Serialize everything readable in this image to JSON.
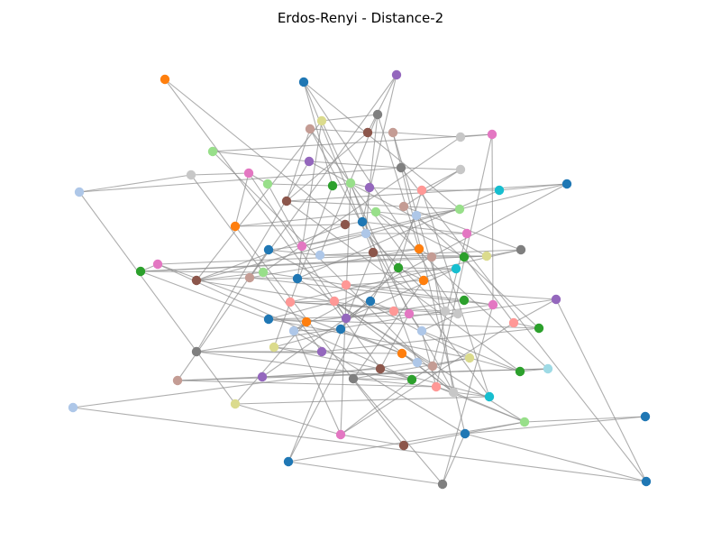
{
  "figure": {
    "title": "Erdos-Renyi - Distance-2"
  },
  "style": {
    "background": "#ffffff",
    "edge_color": "#8c8c8c",
    "title_color": "#000000"
  },
  "nodes": [
    {
      "id": "n0",
      "color": "#ff7f0e"
    },
    {
      "id": "n1",
      "color": "#1f77b4"
    },
    {
      "id": "n2",
      "color": "#9467bd"
    },
    {
      "id": "n3",
      "color": "#dbdb8d"
    },
    {
      "id": "n4",
      "color": "#7f7f7f"
    },
    {
      "id": "n5",
      "color": "#c49c94"
    },
    {
      "id": "n6",
      "color": "#8c564b"
    },
    {
      "id": "n7",
      "color": "#c49c94"
    },
    {
      "id": "n8",
      "color": "#c7c7c7"
    },
    {
      "id": "n9",
      "color": "#e377c2"
    },
    {
      "id": "n10",
      "color": "#98df8a"
    },
    {
      "id": "n11",
      "color": "#9467bd"
    },
    {
      "id": "n12",
      "color": "#7f7f7f"
    },
    {
      "id": "n13",
      "color": "#c7c7c7"
    },
    {
      "id": "n14",
      "color": "#aec7e8"
    },
    {
      "id": "n15",
      "color": "#c7c7c7"
    },
    {
      "id": "n16",
      "color": "#e377c2"
    },
    {
      "id": "n17",
      "color": "#98df8a"
    },
    {
      "id": "n18",
      "color": "#2ca02c"
    },
    {
      "id": "n19",
      "color": "#98df8a"
    },
    {
      "id": "n20",
      "color": "#9467bd"
    },
    {
      "id": "n21",
      "color": "#ff9896"
    },
    {
      "id": "n22",
      "color": "#17becf"
    },
    {
      "id": "n23",
      "color": "#1f77b4"
    },
    {
      "id": "n24",
      "color": "#8c564b"
    },
    {
      "id": "n25",
      "color": "#c49c94"
    },
    {
      "id": "n26",
      "color": "#98df8a"
    },
    {
      "id": "n27",
      "color": "#aec7e8"
    },
    {
      "id": "n28",
      "color": "#98df8a"
    },
    {
      "id": "n29",
      "color": "#ff7f0e"
    },
    {
      "id": "n30",
      "color": "#8c564b"
    },
    {
      "id": "n31",
      "color": "#1f77b4"
    },
    {
      "id": "n32",
      "color": "#e377c2"
    },
    {
      "id": "n33",
      "color": "#aec7e8"
    },
    {
      "id": "n34",
      "color": "#e377c2"
    },
    {
      "id": "n35",
      "color": "#1f77b4"
    },
    {
      "id": "n36",
      "color": "#aec7e8"
    },
    {
      "id": "n37",
      "color": "#8c564b"
    },
    {
      "id": "n38",
      "color": "#ff7f0e"
    },
    {
      "id": "n39",
      "color": "#c49c94"
    },
    {
      "id": "n40",
      "color": "#2ca02c"
    },
    {
      "id": "n41",
      "color": "#dbdb8d"
    },
    {
      "id": "n42",
      "color": "#7f7f7f"
    },
    {
      "id": "n43",
      "color": "#e377c2"
    },
    {
      "id": "n44",
      "color": "#2ca02c"
    },
    {
      "id": "n45",
      "color": "#98df8a"
    },
    {
      "id": "n46",
      "color": "#8c564b"
    },
    {
      "id": "n47",
      "color": "#c49c94"
    },
    {
      "id": "n48",
      "color": "#1f77b4"
    },
    {
      "id": "n49",
      "color": "#17becf"
    },
    {
      "id": "n50",
      "color": "#2ca02c"
    },
    {
      "id": "n51",
      "color": "#ff7f0e"
    },
    {
      "id": "n52",
      "color": "#ff9896"
    },
    {
      "id": "n53",
      "color": "#2ca02c"
    },
    {
      "id": "n54",
      "color": "#e377c2"
    },
    {
      "id": "n55",
      "color": "#c7c7c7"
    },
    {
      "id": "n56",
      "color": "#ff9896"
    },
    {
      "id": "n57",
      "color": "#ff9896"
    },
    {
      "id": "n58",
      "color": "#9467bd"
    },
    {
      "id": "n59",
      "color": "#1f77b4"
    },
    {
      "id": "n60",
      "color": "#ff9896"
    },
    {
      "id": "n61",
      "color": "#e377c2"
    },
    {
      "id": "n62",
      "color": "#aec7e8"
    },
    {
      "id": "n63",
      "color": "#c7c7c7"
    },
    {
      "id": "n64",
      "color": "#9467bd"
    },
    {
      "id": "n65",
      "color": "#ff9896"
    },
    {
      "id": "n66",
      "color": "#2ca02c"
    },
    {
      "id": "n67",
      "color": "#1f77b4"
    },
    {
      "id": "n68",
      "color": "#ff7f0e"
    },
    {
      "id": "n69",
      "color": "#aec7e8"
    },
    {
      "id": "n70",
      "color": "#1f77b4"
    },
    {
      "id": "n71",
      "color": "#dbdb8d"
    },
    {
      "id": "n72",
      "color": "#9467bd"
    },
    {
      "id": "n73",
      "color": "#7f7f7f"
    },
    {
      "id": "n74",
      "color": "#ff7f0e"
    },
    {
      "id": "n75",
      "color": "#aec7e8"
    },
    {
      "id": "n76",
      "color": "#c49c94"
    },
    {
      "id": "n77",
      "color": "#dbdb8d"
    },
    {
      "id": "n78",
      "color": "#2ca02c"
    },
    {
      "id": "n79",
      "color": "#9edae5"
    },
    {
      "id": "n80",
      "color": "#c49c94"
    },
    {
      "id": "n81",
      "color": "#9467bd"
    },
    {
      "id": "n82",
      "color": "#8c564b"
    },
    {
      "id": "n83",
      "color": "#2ca02c"
    },
    {
      "id": "n84",
      "color": "#7f7f7f"
    },
    {
      "id": "n85",
      "color": "#ff9896"
    },
    {
      "id": "n86",
      "color": "#c7c7c7"
    },
    {
      "id": "n87",
      "color": "#17becf"
    },
    {
      "id": "n88",
      "color": "#dbdb8d"
    },
    {
      "id": "n89",
      "color": "#e377c2"
    },
    {
      "id": "n90",
      "color": "#8c564b"
    },
    {
      "id": "n91",
      "color": "#98df8a"
    },
    {
      "id": "n92",
      "color": "#1f77b4"
    },
    {
      "id": "n93",
      "color": "#7f7f7f"
    },
    {
      "id": "n94",
      "color": "#1f77b4"
    },
    {
      "id": "n95",
      "color": "#1f77b4"
    },
    {
      "id": "n96",
      "color": "#1f77b4"
    },
    {
      "id": "n97",
      "color": "#aec7e8"
    }
  ],
  "edges": [
    [
      "n0",
      "n30"
    ],
    [
      "n1",
      "n26"
    ],
    [
      "n1",
      "n18"
    ],
    [
      "n1",
      "n37"
    ],
    [
      "n2",
      "n31"
    ],
    [
      "n2",
      "n6"
    ],
    [
      "n3",
      "n4"
    ],
    [
      "n3",
      "n48"
    ],
    [
      "n3",
      "n46"
    ],
    [
      "n4",
      "n36"
    ],
    [
      "n4",
      "n20"
    ],
    [
      "n4",
      "n38"
    ],
    [
      "n5",
      "n6"
    ],
    [
      "n5",
      "n51"
    ],
    [
      "n5",
      "n24"
    ],
    [
      "n6",
      "n7"
    ],
    [
      "n6",
      "n24"
    ],
    [
      "n7",
      "n8"
    ],
    [
      "n7",
      "n94"
    ],
    [
      "n8",
      "n9"
    ],
    [
      "n8",
      "n45"
    ],
    [
      "n9",
      "n10"
    ],
    [
      "n9",
      "n85"
    ],
    [
      "n10",
      "n11"
    ],
    [
      "n10",
      "n86"
    ],
    [
      "n11",
      "n12"
    ],
    [
      "n11",
      "n41"
    ],
    [
      "n12",
      "n13"
    ],
    [
      "n12",
      "n14"
    ],
    [
      "n13",
      "n25"
    ],
    [
      "n14",
      "n15"
    ],
    [
      "n14",
      "n88"
    ],
    [
      "n15",
      "n16"
    ],
    [
      "n15",
      "n72"
    ],
    [
      "n16",
      "n17"
    ],
    [
      "n16",
      "n29"
    ],
    [
      "n17",
      "n18"
    ],
    [
      "n17",
      "n34"
    ],
    [
      "n18",
      "n19"
    ],
    [
      "n18",
      "n71"
    ],
    [
      "n19",
      "n20"
    ],
    [
      "n19",
      "n75"
    ],
    [
      "n20",
      "n21"
    ],
    [
      "n20",
      "n33"
    ],
    [
      "n21",
      "n22"
    ],
    [
      "n21",
      "n50"
    ],
    [
      "n22",
      "n23"
    ],
    [
      "n22",
      "n48"
    ],
    [
      "n23",
      "n24"
    ],
    [
      "n23",
      "n34"
    ],
    [
      "n24",
      "n25"
    ],
    [
      "n24",
      "n78"
    ],
    [
      "n25",
      "n26"
    ],
    [
      "n25",
      "n42"
    ],
    [
      "n26",
      "n27"
    ],
    [
      "n26",
      "n46"
    ],
    [
      "n27",
      "n28"
    ],
    [
      "n27",
      "n92"
    ],
    [
      "n28",
      "n29"
    ],
    [
      "n28",
      "n40"
    ],
    [
      "n29",
      "n30"
    ],
    [
      "n29",
      "n90"
    ],
    [
      "n30",
      "n31"
    ],
    [
      "n30",
      "n46"
    ],
    [
      "n31",
      "n32"
    ],
    [
      "n31",
      "n87"
    ],
    [
      "n32",
      "n33"
    ],
    [
      "n32",
      "n76"
    ],
    [
      "n33",
      "n34"
    ],
    [
      "n33",
      "n55"
    ],
    [
      "n34",
      "n35"
    ],
    [
      "n35",
      "n36"
    ],
    [
      "n35",
      "n80"
    ],
    [
      "n36",
      "n37"
    ],
    [
      "n36",
      "n41"
    ],
    [
      "n37",
      "n38"
    ],
    [
      "n37",
      "n92"
    ],
    [
      "n38",
      "n39"
    ],
    [
      "n38",
      "n47"
    ],
    [
      "n39",
      "n40"
    ],
    [
      "n39",
      "n44"
    ],
    [
      "n40",
      "n41"
    ],
    [
      "n40",
      "n65"
    ],
    [
      "n41",
      "n42"
    ],
    [
      "n41",
      "n44"
    ],
    [
      "n42",
      "n43"
    ],
    [
      "n42",
      "n56"
    ],
    [
      "n43",
      "n44"
    ],
    [
      "n43",
      "n83"
    ],
    [
      "n44",
      "n45"
    ],
    [
      "n44",
      "n67"
    ],
    [
      "n45",
      "n46"
    ],
    [
      "n45",
      "n52"
    ],
    [
      "n46",
      "n47"
    ],
    [
      "n46",
      "n60"
    ],
    [
      "n47",
      "n48"
    ],
    [
      "n47",
      "n54"
    ],
    [
      "n48",
      "n49"
    ],
    [
      "n48",
      "n91"
    ],
    [
      "n49",
      "n50"
    ],
    [
      "n49",
      "n58"
    ],
    [
      "n50",
      "n51"
    ],
    [
      "n50",
      "n70"
    ],
    [
      "n51",
      "n52"
    ],
    [
      "n51",
      "n84"
    ],
    [
      "n52",
      "n53"
    ],
    [
      "n52",
      "n64"
    ],
    [
      "n53",
      "n54"
    ],
    [
      "n53",
      "n58"
    ],
    [
      "n54",
      "n55"
    ],
    [
      "n54",
      "n93"
    ],
    [
      "n55",
      "n56"
    ],
    [
      "n55",
      "n73"
    ],
    [
      "n56",
      "n57"
    ],
    [
      "n56",
      "n63"
    ],
    [
      "n57",
      "n58"
    ],
    [
      "n57",
      "n86"
    ],
    [
      "n58",
      "n59"
    ],
    [
      "n59",
      "n60"
    ],
    [
      "n59",
      "n81"
    ],
    [
      "n60",
      "n61"
    ],
    [
      "n60",
      "n68"
    ],
    [
      "n61",
      "n62"
    ],
    [
      "n61",
      "n82"
    ],
    [
      "n62",
      "n63"
    ],
    [
      "n62",
      "n78"
    ],
    [
      "n63",
      "n64"
    ],
    [
      "n63",
      "n67"
    ],
    [
      "n64",
      "n65"
    ],
    [
      "n64",
      "n96"
    ],
    [
      "n65",
      "n66"
    ],
    [
      "n65",
      "n89"
    ],
    [
      "n66",
      "n67"
    ],
    [
      "n66",
      "n72"
    ],
    [
      "n67",
      "n68"
    ],
    [
      "n67",
      "n77"
    ],
    [
      "n68",
      "n69"
    ],
    [
      "n68",
      "n88"
    ],
    [
      "n69",
      "n70"
    ],
    [
      "n69",
      "n94"
    ],
    [
      "n70",
      "n71"
    ],
    [
      "n70",
      "n74"
    ],
    [
      "n71",
      "n72"
    ],
    [
      "n71",
      "n82"
    ],
    [
      "n72",
      "n73"
    ],
    [
      "n73",
      "n74"
    ],
    [
      "n73",
      "n83"
    ],
    [
      "n74",
      "n75"
    ],
    [
      "n74",
      "n86"
    ],
    [
      "n75",
      "n76"
    ],
    [
      "n75",
      "n97"
    ],
    [
      "n76",
      "n77"
    ],
    [
      "n76",
      "n83"
    ],
    [
      "n77",
      "n78"
    ],
    [
      "n77",
      "n84"
    ],
    [
      "n78",
      "n79"
    ],
    [
      "n79",
      "n80"
    ],
    [
      "n79",
      "n81"
    ],
    [
      "n80",
      "n81"
    ],
    [
      "n80",
      "n85"
    ],
    [
      "n81",
      "n82"
    ],
    [
      "n82",
      "n83"
    ],
    [
      "n82",
      "n87"
    ],
    [
      "n83",
      "n84"
    ],
    [
      "n83",
      "n89"
    ],
    [
      "n84",
      "n85"
    ],
    [
      "n84",
      "n93"
    ],
    [
      "n85",
      "n86"
    ],
    [
      "n85",
      "n91"
    ],
    [
      "n86",
      "n87"
    ],
    [
      "n86",
      "n91"
    ],
    [
      "n87",
      "n88"
    ],
    [
      "n88",
      "n89"
    ],
    [
      "n89",
      "n90"
    ],
    [
      "n90",
      "n91"
    ],
    [
      "n91",
      "n92"
    ],
    [
      "n91",
      "n95"
    ],
    [
      "n92",
      "n93"
    ],
    [
      "n93",
      "n94"
    ],
    [
      "n94",
      "n95"
    ],
    [
      "n94",
      "n96"
    ],
    [
      "n96",
      "n97"
    ],
    [
      "n1",
      "n63"
    ],
    [
      "n3",
      "n61"
    ],
    [
      "n0",
      "n82"
    ],
    [
      "n12",
      "n96"
    ],
    [
      "n21",
      "n87"
    ],
    [
      "n27",
      "n66"
    ],
    [
      "n35",
      "n77"
    ],
    [
      "n5",
      "n86"
    ],
    [
      "n9",
      "n54"
    ],
    [
      "n11",
      "n73"
    ],
    [
      "n13",
      "n21"
    ],
    [
      "n2",
      "n47"
    ],
    [
      "n7",
      "n55"
    ],
    [
      "n16",
      "n58"
    ],
    [
      "n19",
      "n89"
    ],
    [
      "n23",
      "n69"
    ],
    [
      "n39",
      "n86"
    ],
    [
      "n43",
      "n74"
    ],
    [
      "n49",
      "n67"
    ],
    [
      "n57",
      "n76"
    ],
    [
      "n62",
      "n85"
    ],
    [
      "n69",
      "n89"
    ],
    [
      "n79",
      "n28"
    ]
  ]
}
